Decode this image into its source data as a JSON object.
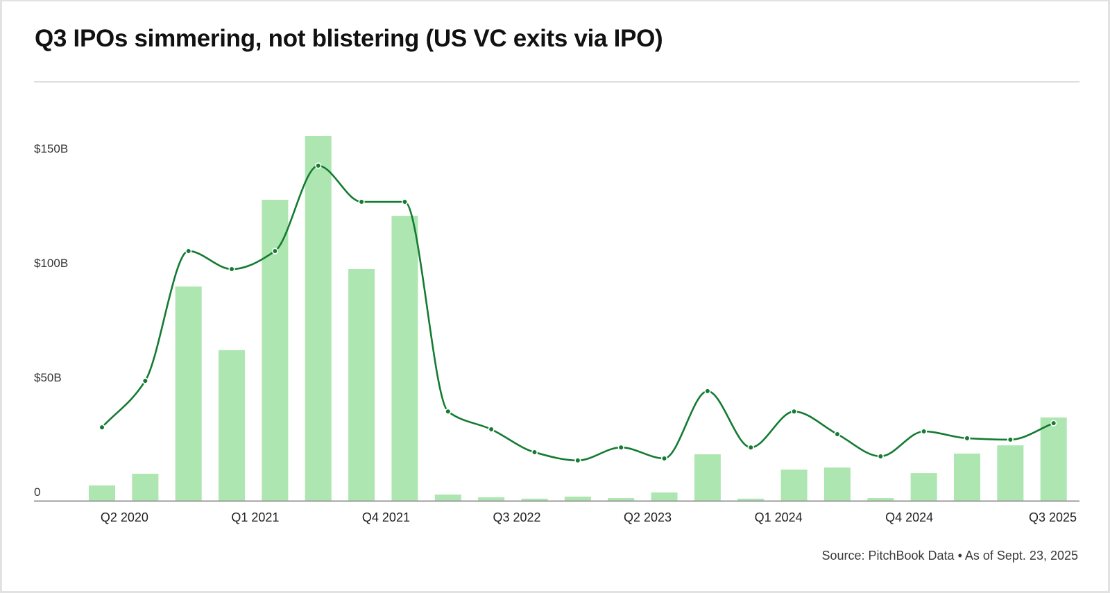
{
  "title": "Q3 IPOs simmering, not blistering (US VC exits via IPO)",
  "source": "Source: PitchBook Data • As of Sept. 23, 2025",
  "colors": {
    "bar": "#ade6b0",
    "line": "#137b32",
    "axis": "#9a9a9a",
    "marker_stroke": "#ffffff"
  },
  "chart_data": {
    "type": "bar",
    "title": "Q3 IPOs simmering, not blistering (US VC exits via IPO)",
    "xlabel": "",
    "ylabel": "",
    "ylim": [
      0,
      160
    ],
    "grid": false,
    "legend": "none",
    "y_ticks": [
      {
        "value": 0,
        "label": "0"
      },
      {
        "value": 50,
        "label": "$50B"
      },
      {
        "value": 100,
        "label": "$100B"
      },
      {
        "value": 150,
        "label": "$150B"
      }
    ],
    "categories": [
      "Q1 2020",
      "Q2 2020",
      "Q3 2020",
      "Q4 2020",
      "Q1 2021",
      "Q2 2021",
      "Q3 2021",
      "Q4 2021",
      "Q1 2022",
      "Q2 2022",
      "Q3 2022",
      "Q4 2022",
      "Q1 2023",
      "Q2 2023",
      "Q3 2023",
      "Q4 2023",
      "Q1 2024",
      "Q2 2024",
      "Q3 2024",
      "Q4 2024",
      "Q1 2025",
      "Q2 2025",
      "Q3 2025"
    ],
    "x_tick_labels": [
      "Q2 2020",
      "Q1 2021",
      "Q4 2021",
      "Q3 2022",
      "Q2 2023",
      "Q1 2024",
      "Q4 2024",
      "Q3 2025"
    ],
    "series": [
      {
        "name": "bars",
        "type": "bar",
        "values": [
          6.7,
          11.8,
          93.6,
          65.8,
          131.5,
          159.4,
          101.2,
          124.5,
          2.7,
          1.5,
          0.9,
          1.8,
          1.2,
          3.6,
          20.3,
          0.9,
          13.6,
          14.5,
          1.2,
          12.1,
          20.6,
          24.2,
          36.4
        ]
      },
      {
        "name": "line",
        "type": "line",
        "values": [
          32.1,
          52.4,
          109.1,
          101.2,
          109.1,
          146.4,
          130.6,
          130.6,
          39.0,
          31.2,
          21.2,
          17.6,
          23.3,
          18.5,
          47.9,
          23.3,
          39.0,
          29.1,
          19.4,
          30.3,
          27.3,
          26.7,
          33.9
        ]
      }
    ]
  }
}
